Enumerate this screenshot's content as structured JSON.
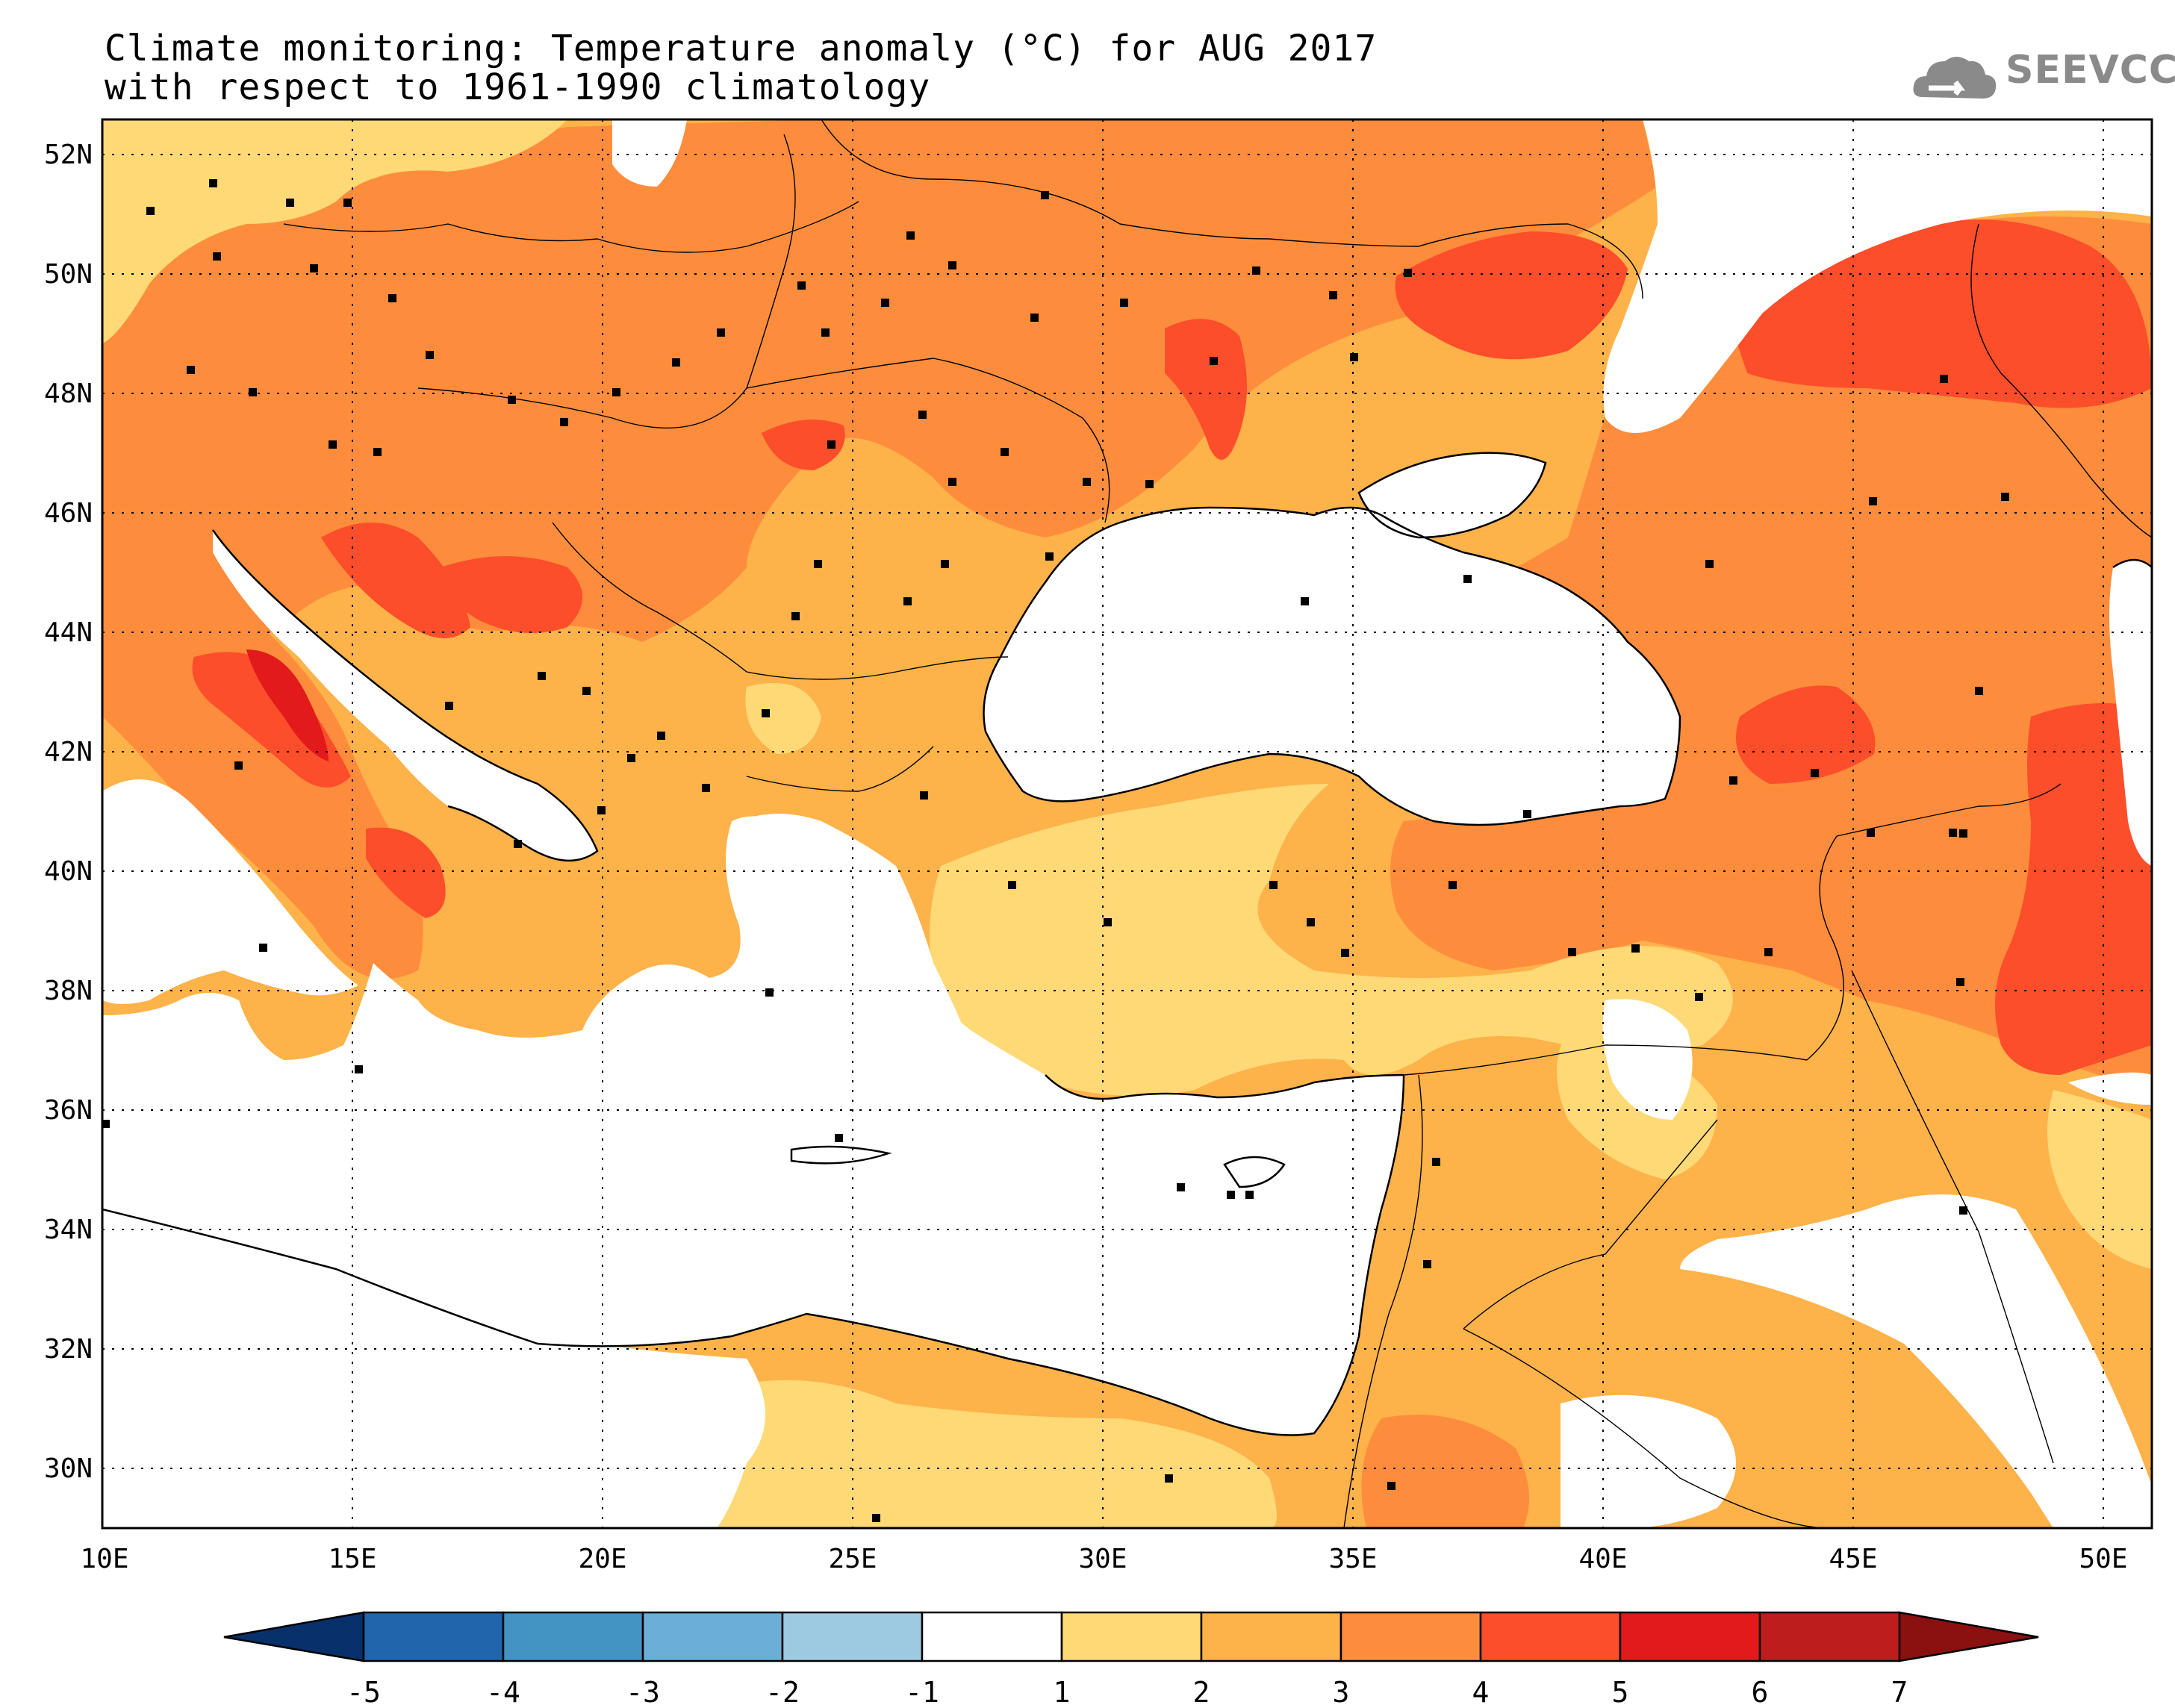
{
  "title": {
    "line1": "Climate monitoring: Temperature anomaly (°C) for AUG 2017",
    "line2": "with respect to 1961-1990 climatology"
  },
  "logo": {
    "text": "SEEVCCC",
    "icon": "cloud-arrow-icon"
  },
  "map": {
    "lat_range": [
      29,
      52.5
    ],
    "lon_range": [
      10,
      51
    ],
    "lat_labels": [
      "52N",
      "50N",
      "48N",
      "46N",
      "44N",
      "42N",
      "40N",
      "38N",
      "36N",
      "34N",
      "32N",
      "30N"
    ],
    "lon_labels": [
      "10E",
      "15E",
      "20E",
      "25E",
      "30E",
      "35E",
      "40E",
      "45E",
      "50E"
    ],
    "grid": "dotted"
  },
  "colorbar": {
    "labels": [
      "-5",
      "-4",
      "-3",
      "-2",
      "-1",
      "1",
      "2",
      "3",
      "4",
      "5",
      "6",
      "7"
    ],
    "colors": [
      "#08306b",
      "#2166ac",
      "#4393c3",
      "#6baed6",
      "#9ecae1",
      "#ffffff",
      "#fed976",
      "#fdb24a",
      "#fd8d3c",
      "#fc4e2a",
      "#e31a1c",
      "#bd1d1d",
      "#8b1010"
    ]
  },
  "colors": {
    "c1_2": "#fed976",
    "c2_3": "#fdb24a",
    "c3_4": "#fd8d3c",
    "c4_5": "#fc4e2a",
    "c5_6": "#e31a1c"
  }
}
